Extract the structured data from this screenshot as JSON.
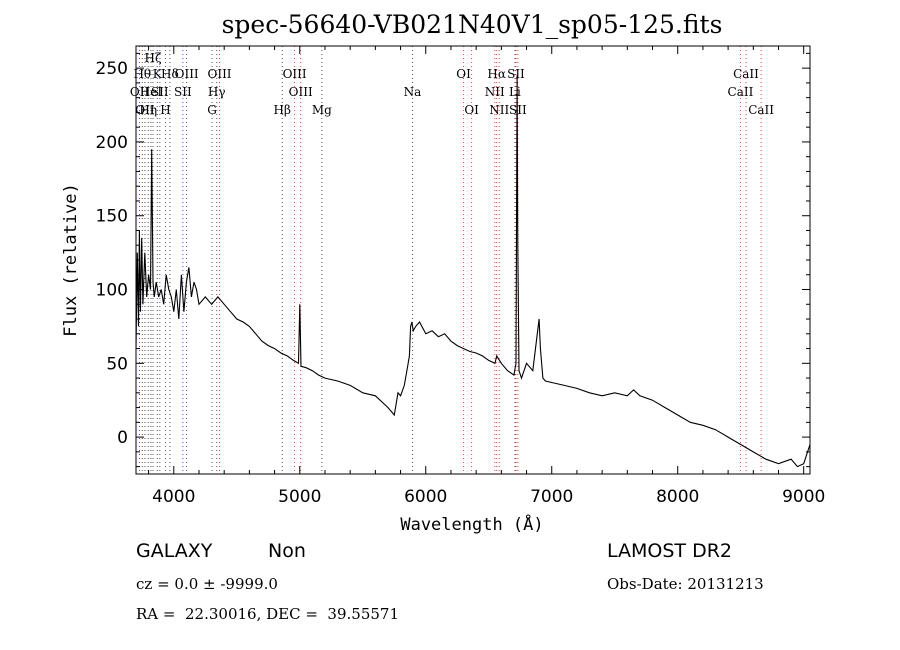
{
  "chart_data": {
    "type": "line",
    "title": "spec-56640-VB021N40V1_sp05-125.fits",
    "xlabel": "Wavelength (Å)",
    "ylabel": "Flux (relative)",
    "xlim": [
      3700,
      9050
    ],
    "ylim": [
      -25,
      265
    ],
    "xticks": [
      4000,
      5000,
      6000,
      7000,
      8000,
      9000
    ],
    "yticks": [
      0,
      50,
      100,
      150,
      200,
      250
    ],
    "x_tick_labels": [
      "4000",
      "5000",
      "6000",
      "7000",
      "8000",
      "9000"
    ],
    "y_tick_labels": [
      "0",
      "50",
      "100",
      "150",
      "200",
      "250"
    ],
    "grid": false,
    "series": [
      {
        "x": [
          3700,
          3710,
          3720,
          3727,
          3735,
          3745,
          3755,
          3770,
          3785,
          3800,
          3815,
          3825,
          3835,
          3845,
          3860,
          3880,
          3900,
          3920,
          3940,
          3960,
          3980,
          4000,
          4020,
          4040,
          4060,
          4080,
          4100,
          4120,
          4140,
          4160,
          4180,
          4200,
          4250,
          4300,
          4350,
          4400,
          4450,
          4500,
          4550,
          4600,
          4650,
          4700,
          4750,
          4800,
          4850,
          4900,
          4950,
          4990,
          5000,
          5010,
          5050,
          5100,
          5150,
          5200,
          5300,
          5400,
          5500,
          5600,
          5700,
          5750,
          5780,
          5800,
          5830,
          5850,
          5870,
          5880,
          5890,
          5900,
          5920,
          5950,
          6000,
          6050,
          6100,
          6150,
          6200,
          6250,
          6300,
          6350,
          6400,
          6450,
          6500,
          6550,
          6563,
          6600,
          6650,
          6700,
          6716,
          6725,
          6731,
          6740,
          6760,
          6800,
          6850,
          6900,
          6910,
          6930,
          6950,
          7000,
          7100,
          7200,
          7300,
          7400,
          7500,
          7600,
          7650,
          7700,
          7800,
          7900,
          8000,
          8100,
          8200,
          8300,
          8400,
          8500,
          8600,
          8700,
          8800,
          8900,
          8950,
          9000,
          9050
        ],
        "y": [
          60,
          125,
          75,
          140,
          85,
          135,
          90,
          125,
          95,
          110,
          100,
          195,
          105,
          95,
          105,
          95,
          100,
          90,
          110,
          100,
          95,
          85,
          100,
          80,
          110,
          85,
          105,
          115,
          95,
          105,
          100,
          90,
          95,
          90,
          95,
          90,
          85,
          80,
          78,
          75,
          70,
          65,
          62,
          60,
          57,
          55,
          52,
          50,
          90,
          48,
          47,
          45,
          42,
          40,
          38,
          35,
          30,
          28,
          20,
          15,
          30,
          28,
          35,
          45,
          55,
          75,
          78,
          72,
          75,
          78,
          70,
          72,
          68,
          70,
          65,
          62,
          60,
          58,
          57,
          55,
          52,
          50,
          55,
          50,
          45,
          42,
          50,
          245,
          130,
          45,
          40,
          50,
          45,
          80,
          60,
          40,
          38,
          37,
          35,
          33,
          30,
          28,
          30,
          28,
          32,
          28,
          25,
          20,
          15,
          10,
          8,
          5,
          0,
          -5,
          -10,
          -15,
          -18,
          -15,
          -20,
          -18,
          -5
        ]
      }
    ],
    "line_markers": [
      {
        "x": 3728,
        "label": "OII",
        "row": 2,
        "series": "blue"
      },
      {
        "x": 3750,
        "label": "Hθ",
        "row": 1,
        "series": "black"
      },
      {
        "x": 3771,
        "label": "OII",
        "row": 3,
        "series": "black"
      },
      {
        "x": 3797,
        "label": "Hη",
        "row": 3,
        "series": "black"
      },
      {
        "x": 3819,
        "label": "HeI",
        "row": 2,
        "series": "black"
      },
      {
        "x": 3835,
        "label": "Hζ",
        "row": 0,
        "series": "black"
      },
      {
        "x": 3869,
        "label": "K",
        "row": 1,
        "series": "black"
      },
      {
        "x": 3889,
        "label": "SII",
        "row": 2,
        "series": "blue"
      },
      {
        "x": 3934,
        "label": "H",
        "row": 3,
        "series": "black"
      },
      {
        "x": 3969,
        "label": "Hδ",
        "row": 1,
        "series": "black"
      },
      {
        "x": 4072,
        "label": "SII",
        "row": 2,
        "series": "blue"
      },
      {
        "x": 4102,
        "label": "OIII",
        "row": 1,
        "series": "black"
      },
      {
        "x": 4304,
        "label": "G",
        "row": 3,
        "series": "black"
      },
      {
        "x": 4341,
        "label": "Hγ",
        "row": 2,
        "series": "black"
      },
      {
        "x": 4363,
        "label": "OIII",
        "row": 1,
        "series": "red"
      },
      {
        "x": 4861,
        "label": "Hβ",
        "row": 3,
        "series": "black"
      },
      {
        "x": 4959,
        "label": "OIII",
        "row": 1,
        "series": "red"
      },
      {
        "x": 5007,
        "label": "OIII",
        "row": 2,
        "series": "red"
      },
      {
        "x": 5175,
        "label": "Mg",
        "row": 3,
        "series": "black"
      },
      {
        "x": 5894,
        "label": "Na",
        "row": 2,
        "series": "black"
      },
      {
        "x": 6300,
        "label": "OI",
        "row": 1,
        "series": "red"
      },
      {
        "x": 6364,
        "label": "OI",
        "row": 3,
        "series": "red"
      },
      {
        "x": 6548,
        "label": "NII",
        "row": 2,
        "series": "red"
      },
      {
        "x": 6563,
        "label": "Hα",
        "row": 1,
        "series": "red"
      },
      {
        "x": 6583,
        "label": "NII",
        "row": 3,
        "series": "red"
      },
      {
        "x": 6708,
        "label": "Li",
        "row": 2,
        "series": "black"
      },
      {
        "x": 6716,
        "label": "SII",
        "row": 1,
        "series": "red"
      },
      {
        "x": 6731,
        "label": "SII",
        "row": 3,
        "series": "red"
      },
      {
        "x": 8498,
        "label": "CaII",
        "row": 2,
        "series": "red"
      },
      {
        "x": 8542,
        "label": "CaII",
        "row": 1,
        "series": "red"
      },
      {
        "x": 8662,
        "label": "CaII",
        "row": 3,
        "series": "red"
      }
    ],
    "marker_colors": {
      "black": "#555555",
      "red": "#ff3b3b",
      "blue": "#4a4aff"
    }
  },
  "info": {
    "class_label": "GALAXY",
    "subclass_label": "Non",
    "survey_label": "LAMOST DR2",
    "redshift_text": "cz = 0.0 ± -9999.0",
    "obs_date_text": "Obs-Date: 20131213",
    "coords_text": "RA =  22.30016, DEC =  39.55571"
  }
}
